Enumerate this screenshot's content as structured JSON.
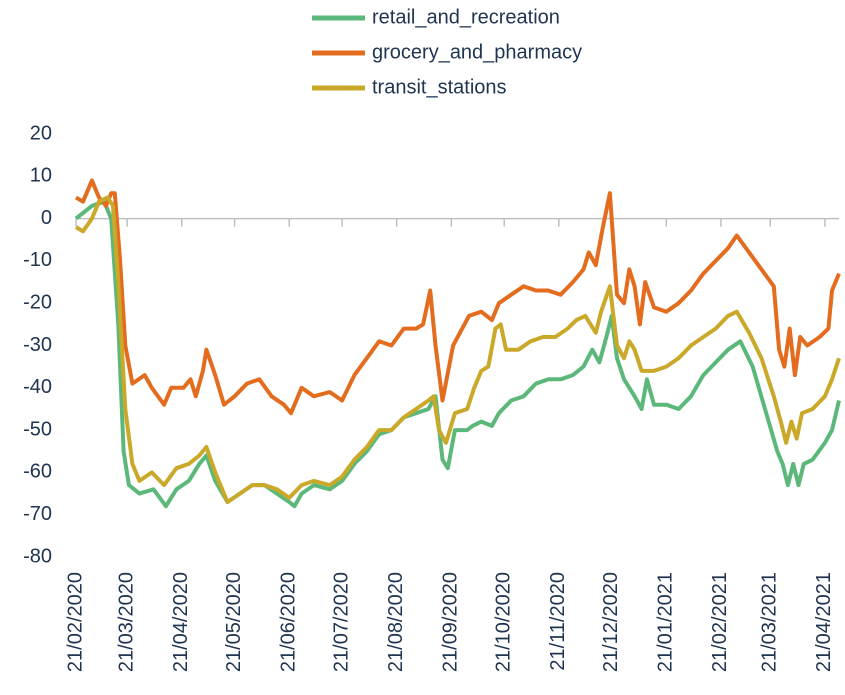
{
  "chart_data": {
    "type": "line",
    "xlim": [
      "21/02/2020",
      "29/04/2021"
    ],
    "xticks": [
      "21/02/2020",
      "21/03/2020",
      "21/04/2020",
      "21/05/2020",
      "21/06/2020",
      "21/07/2020",
      "21/08/2020",
      "21/09/2020",
      "21/10/2020",
      "21/11/2020",
      "21/12/2020",
      "21/01/2021",
      "21/02/2021",
      "21/03/2021",
      "21/04/2021"
    ],
    "ylim": [
      -80,
      20
    ],
    "yticks": [
      -80,
      -70,
      -60,
      -50,
      -40,
      -30,
      -20,
      -10,
      0,
      10,
      20
    ],
    "grid": false,
    "legend": "top",
    "series": [
      {
        "name": "retail_and_recreation",
        "color": "#5cb87a",
        "x": [
          "21/02/2020",
          "01/03/2020",
          "08/03/2020",
          "12/03/2020",
          "16/03/2020",
          "19/03/2020",
          "22/03/2020",
          "28/03/2020",
          "05/04/2020",
          "12/04/2020",
          "18/04/2020",
          "25/04/2020",
          "01/05/2020",
          "05/05/2020",
          "10/05/2020",
          "17/05/2020",
          "24/05/2020",
          "31/05/2020",
          "07/06/2020",
          "14/06/2020",
          "21/06/2020",
          "24/06/2020",
          "28/06/2020",
          "05/07/2020",
          "14/07/2020",
          "21/07/2020",
          "28/07/2020",
          "04/08/2020",
          "11/08/2020",
          "18/08/2020",
          "25/08/2020",
          "01/09/2020",
          "08/09/2020",
          "12/09/2020",
          "16/09/2020",
          "19/09/2020",
          "23/09/2020",
          "30/09/2020",
          "03/10/2020",
          "08/10/2020",
          "14/10/2020",
          "18/10/2020",
          "25/10/2020",
          "01/11/2020",
          "08/11/2020",
          "15/11/2020",
          "22/11/2020",
          "29/11/2020",
          "05/12/2020",
          "10/12/2020",
          "14/12/2020",
          "18/12/2020",
          "21/12/2020",
          "24/12/2020",
          "28/12/2020",
          "03/01/2021",
          "07/01/2021",
          "10/01/2021",
          "14/01/2021",
          "21/01/2021",
          "28/01/2021",
          "04/02/2021",
          "11/02/2021",
          "18/02/2021",
          "25/02/2021",
          "04/03/2021",
          "11/03/2021",
          "18/03/2021",
          "25/03/2021",
          "28/03/2021",
          "31/03/2021",
          "03/04/2021",
          "06/04/2021",
          "09/04/2021",
          "14/04/2021",
          "21/04/2021",
          "25/04/2021",
          "29/04/2021"
        ],
        "values": [
          0,
          3,
          4,
          0,
          -25,
          -55,
          -63,
          -65,
          -64,
          -68,
          -64,
          -62,
          -58,
          -56,
          -62,
          -67,
          -65,
          -63,
          -63,
          -65,
          -67,
          -68,
          -65,
          -63,
          -64,
          -62,
          -58,
          -55,
          -51,
          -50,
          -47,
          -46,
          -45,
          -42,
          -57,
          -59,
          -50,
          -50,
          -49,
          -48,
          -49,
          -46,
          -43,
          -42,
          -39,
          -38,
          -38,
          -37,
          -35,
          -31,
          -34,
          -28,
          -23,
          -33,
          -38,
          -42,
          -45,
          -38,
          -44,
          -44,
          -45,
          -42,
          -37,
          -34,
          -31,
          -29,
          -35,
          -45,
          -55,
          -58,
          -63,
          -58,
          -63,
          -58,
          -57,
          -53,
          -50,
          -43
        ]
      },
      {
        "name": "grocery_and_pharmacy",
        "color": "#e36c1e",
        "x": [
          "21/02/2020",
          "25/02/2020",
          "01/03/2020",
          "05/03/2020",
          "09/03/2020",
          "12/03/2020",
          "14/03/2020",
          "17/03/2020",
          "20/03/2020",
          "24/03/2020",
          "31/03/2020",
          "04/04/2020",
          "11/04/2020",
          "15/04/2020",
          "22/04/2020",
          "26/04/2020",
          "29/04/2020",
          "03/05/2020",
          "05/05/2020",
          "10/05/2020",
          "15/05/2020",
          "21/05/2020",
          "28/05/2020",
          "04/06/2020",
          "11/06/2020",
          "18/06/2020",
          "22/06/2020",
          "28/06/2020",
          "05/07/2020",
          "14/07/2020",
          "21/07/2020",
          "28/07/2020",
          "04/08/2020",
          "11/08/2020",
          "18/08/2020",
          "25/08/2020",
          "01/09/2020",
          "05/09/2020",
          "09/09/2020",
          "12/09/2020",
          "16/09/2020",
          "22/09/2020",
          "01/10/2020",
          "08/10/2020",
          "14/10/2020",
          "18/10/2020",
          "25/10/2020",
          "01/11/2020",
          "08/11/2020",
          "15/11/2020",
          "22/11/2020",
          "29/11/2020",
          "05/12/2020",
          "08/12/2020",
          "12/12/2020",
          "16/12/2020",
          "20/12/2020",
          "24/12/2020",
          "28/12/2020",
          "31/12/2020",
          "03/01/2021",
          "06/01/2021",
          "09/01/2021",
          "14/01/2021",
          "21/01/2021",
          "28/01/2021",
          "04/02/2021",
          "11/02/2021",
          "18/02/2021",
          "25/02/2021",
          "02/03/2021",
          "09/03/2021",
          "16/03/2021",
          "23/03/2021",
          "26/03/2021",
          "29/03/2021",
          "01/04/2021",
          "04/04/2021",
          "07/04/2021",
          "11/04/2021",
          "18/04/2021",
          "23/04/2021",
          "25/04/2021",
          "29/04/2021"
        ],
        "values": [
          5,
          4,
          9,
          5,
          3,
          6,
          6,
          -10,
          -30,
          -39,
          -37,
          -40,
          -44,
          -40,
          -40,
          -38,
          -42,
          -36,
          -31,
          -37,
          -44,
          -42,
          -39,
          -38,
          -42,
          -44,
          -46,
          -40,
          -42,
          -41,
          -43,
          -37,
          -33,
          -29,
          -30,
          -26,
          -26,
          -25,
          -17,
          -30,
          -43,
          -30,
          -23,
          -22,
          -24,
          -20,
          -18,
          -16,
          -17,
          -17,
          -18,
          -15,
          -12,
          -8,
          -11,
          -2,
          6,
          -18,
          -20,
          -12,
          -16,
          -25,
          -15,
          -21,
          -22,
          -20,
          -17,
          -13,
          -10,
          -7,
          -4,
          -8,
          -12,
          -16,
          -31,
          -35,
          -26,
          -37,
          -28,
          -30,
          -28,
          -26,
          -17,
          -13
        ]
      },
      {
        "name": "transit_stations",
        "color": "#c9a82a",
        "x": [
          "21/02/2020",
          "25/02/2020",
          "01/03/2020",
          "05/03/2020",
          "10/03/2020",
          "13/03/2020",
          "16/03/2020",
          "20/03/2020",
          "24/03/2020",
          "28/03/2020",
          "04/04/2020",
          "11/04/2020",
          "18/04/2020",
          "25/04/2020",
          "01/05/2020",
          "05/05/2020",
          "10/05/2020",
          "17/05/2020",
          "24/05/2020",
          "31/05/2020",
          "07/06/2020",
          "14/06/2020",
          "21/06/2020",
          "28/06/2020",
          "05/07/2020",
          "14/07/2020",
          "21/07/2020",
          "28/07/2020",
          "04/08/2020",
          "11/08/2020",
          "18/08/2020",
          "25/08/2020",
          "01/09/2020",
          "08/09/2020",
          "11/09/2020",
          "14/09/2020",
          "18/09/2020",
          "23/09/2020",
          "30/09/2020",
          "04/10/2020",
          "08/10/2020",
          "12/10/2020",
          "16/10/2020",
          "19/10/2020",
          "22/10/2020",
          "29/10/2020",
          "05/11/2020",
          "12/11/2020",
          "19/11/2020",
          "26/11/2020",
          "01/12/2020",
          "06/12/2020",
          "12/12/2020",
          "15/12/2020",
          "20/12/2020",
          "24/12/2020",
          "28/12/2020",
          "31/12/2020",
          "03/01/2021",
          "07/01/2021",
          "14/01/2021",
          "21/01/2021",
          "28/01/2021",
          "04/02/2021",
          "11/02/2021",
          "18/02/2021",
          "25/02/2021",
          "02/03/2021",
          "09/03/2021",
          "16/03/2021",
          "23/03/2021",
          "27/03/2021",
          "30/03/2021",
          "02/04/2021",
          "05/04/2021",
          "08/04/2021",
          "14/04/2021",
          "21/04/2021",
          "25/04/2021",
          "29/04/2021"
        ],
        "values": [
          -2,
          -3,
          0,
          4,
          5,
          3,
          -15,
          -45,
          -58,
          -62,
          -60,
          -63,
          -59,
          -58,
          -56,
          -54,
          -60,
          -67,
          -65,
          -63,
          -63,
          -64,
          -66,
          -63,
          -62,
          -63,
          -61,
          -57,
          -54,
          -50,
          -50,
          -47,
          -45,
          -43,
          -42,
          -50,
          -53,
          -46,
          -45,
          -40,
          -36,
          -35,
          -26,
          -25,
          -31,
          -31,
          -29,
          -28,
          -28,
          -26,
          -24,
          -23,
          -27,
          -22,
          -16,
          -30,
          -33,
          -29,
          -31,
          -36,
          -36,
          -35,
          -33,
          -30,
          -28,
          -26,
          -23,
          -22,
          -27,
          -33,
          -42,
          -48,
          -53,
          -48,
          -52,
          -46,
          -45,
          -42,
          -38,
          -33
        ]
      }
    ]
  }
}
